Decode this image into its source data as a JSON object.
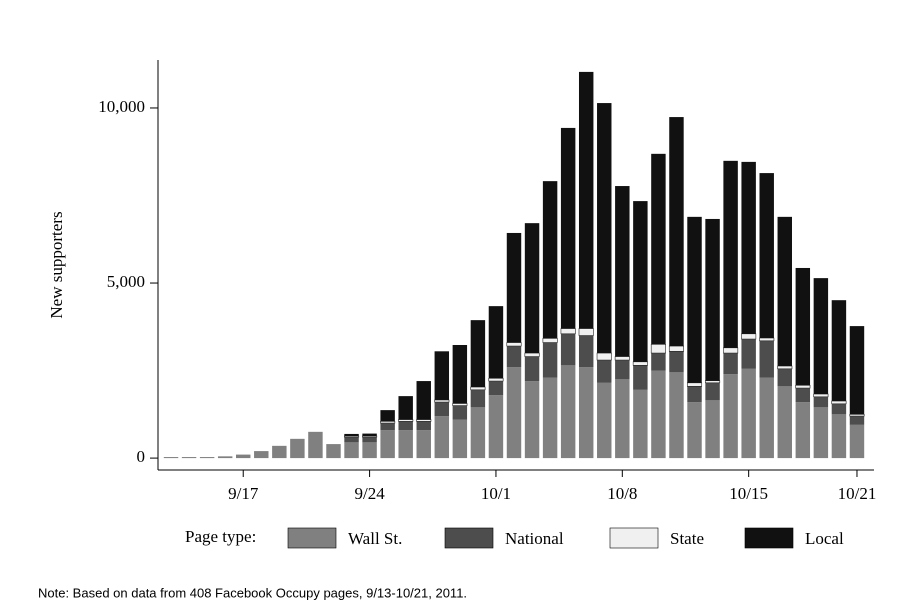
{
  "chart_data": {
    "type": "stacked_bar",
    "ylabel": "New supporters",
    "legend_title": "Page type:",
    "note": "Note: Based on data from 408 Facebook Occupy pages, 9/13-10/21, 2011.",
    "categories": [
      null,
      null,
      null,
      null,
      "9/17",
      null,
      null,
      null,
      null,
      null,
      null,
      "9/24",
      null,
      null,
      null,
      null,
      null,
      null,
      "10/1",
      null,
      null,
      null,
      null,
      null,
      null,
      "10/8",
      null,
      null,
      null,
      null,
      null,
      null,
      "10/15",
      null,
      null,
      null,
      null,
      null,
      "10/21"
    ],
    "series": [
      {
        "name": "Wall St.",
        "color": "#808080",
        "values": [
          30,
          30,
          30,
          50,
          100,
          200,
          350,
          550,
          750,
          400,
          450,
          450,
          800,
          800,
          800,
          1200,
          1100,
          1450,
          1800,
          2600,
          2200,
          2300,
          2650,
          2600,
          2150,
          2250,
          1950,
          2500,
          2450,
          1600,
          1650,
          2400,
          2550,
          2300,
          2050,
          1600,
          1450,
          1250,
          950
        ]
      },
      {
        "name": "National",
        "color": "#4d4d4d",
        "values": [
          0,
          0,
          0,
          0,
          0,
          0,
          0,
          0,
          0,
          0,
          150,
          150,
          200,
          250,
          250,
          400,
          400,
          500,
          400,
          600,
          700,
          1000,
          900,
          900,
          650,
          550,
          700,
          500,
          600,
          450,
          500,
          600,
          850,
          1050,
          500,
          400,
          300,
          300,
          250
        ]
      },
      {
        "name": "State",
        "color": "#f0f0f0",
        "values": [
          0,
          0,
          0,
          0,
          0,
          0,
          0,
          0,
          0,
          0,
          30,
          30,
          50,
          50,
          50,
          60,
          60,
          80,
          80,
          100,
          100,
          120,
          150,
          200,
          200,
          100,
          100,
          250,
          150,
          100,
          60,
          150,
          150,
          80,
          80,
          80,
          80,
          80,
          50
        ]
      },
      {
        "name": "Local",
        "color": "#111111",
        "values": [
          0,
          0,
          0,
          0,
          0,
          0,
          0,
          0,
          0,
          0,
          60,
          70,
          320,
          670,
          1100,
          1390,
          1670,
          1910,
          2060,
          3130,
          3710,
          4490,
          5730,
          7330,
          7140,
          4870,
          4590,
          5440,
          6540,
          4740,
          4620,
          5340,
          4910,
          4710,
          4260,
          3350,
          3310,
          2880,
          2520
        ]
      }
    ],
    "ylim": [
      -340,
      11370
    ],
    "yticks": [
      0,
      {
        "value": 5000,
        "label": "5,000"
      },
      {
        "value": 10000,
        "label": "10,000"
      }
    ]
  }
}
